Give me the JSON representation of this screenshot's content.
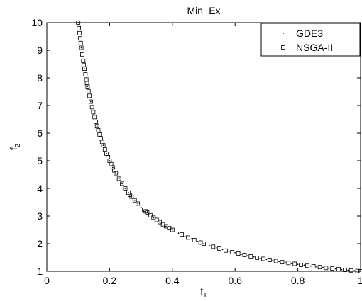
{
  "chart_data": {
    "type": "scatter",
    "title": "Min−Ex",
    "xlabel": "f",
    "xlabel_sub": "1",
    "ylabel": "f",
    "ylabel_sub": "2",
    "xlim": [
      0,
      1
    ],
    "ylim": [
      1,
      10
    ],
    "x_ticks": [
      "0",
      "0.2",
      "0.4",
      "0.6",
      "0.8",
      "1"
    ],
    "y_ticks": [
      "1",
      "2",
      "3",
      "4",
      "5",
      "6",
      "7",
      "8",
      "9",
      "10"
    ],
    "grid": false,
    "legend_position": "top-right",
    "series": [
      {
        "name": "GDE3",
        "marker": "dot",
        "points": [
          [
            0.1,
            10.0
          ],
          [
            0.11,
            9.09
          ],
          [
            0.12,
            8.33
          ],
          [
            0.13,
            7.69
          ],
          [
            0.14,
            7.14
          ],
          [
            0.15,
            6.67
          ],
          [
            0.16,
            6.25
          ],
          [
            0.17,
            5.88
          ],
          [
            0.18,
            5.56
          ],
          [
            0.19,
            5.26
          ],
          [
            0.2,
            5.0
          ],
          [
            0.21,
            4.76
          ],
          [
            0.22,
            4.55
          ],
          [
            0.23,
            4.35
          ],
          [
            0.24,
            4.17
          ],
          [
            0.25,
            4.0
          ],
          [
            0.26,
            3.85
          ],
          [
            0.27,
            3.7
          ],
          [
            0.28,
            3.57
          ],
          [
            0.29,
            3.45
          ],
          [
            0.3,
            3.33
          ],
          [
            0.32,
            3.13
          ],
          [
            0.34,
            2.94
          ],
          [
            0.36,
            2.78
          ],
          [
            0.38,
            2.63
          ],
          [
            0.4,
            2.5
          ],
          [
            0.42,
            2.38
          ],
          [
            0.44,
            2.27
          ],
          [
            0.46,
            2.17
          ],
          [
            0.48,
            2.08
          ],
          [
            0.5,
            2.0
          ],
          [
            0.52,
            1.92
          ],
          [
            0.54,
            1.85
          ],
          [
            0.56,
            1.79
          ],
          [
            0.58,
            1.72
          ],
          [
            0.6,
            1.67
          ],
          [
            0.62,
            1.61
          ],
          [
            0.64,
            1.56
          ],
          [
            0.66,
            1.52
          ],
          [
            0.68,
            1.47
          ],
          [
            0.7,
            1.43
          ],
          [
            0.72,
            1.39
          ],
          [
            0.74,
            1.35
          ],
          [
            0.76,
            1.32
          ],
          [
            0.78,
            1.28
          ],
          [
            0.8,
            1.25
          ],
          [
            0.82,
            1.22
          ],
          [
            0.84,
            1.19
          ],
          [
            0.86,
            1.16
          ],
          [
            0.88,
            1.14
          ],
          [
            0.9,
            1.11
          ],
          [
            0.92,
            1.09
          ],
          [
            0.94,
            1.06
          ],
          [
            0.96,
            1.04
          ],
          [
            0.98,
            1.02
          ],
          [
            1.0,
            1.0
          ]
        ]
      },
      {
        "name": "NSGA-II",
        "marker": "square",
        "points": [
          [
            0.1,
            10.0
          ],
          [
            0.102,
            9.8
          ],
          [
            0.104,
            9.62
          ],
          [
            0.106,
            9.43
          ],
          [
            0.108,
            9.26
          ],
          [
            0.11,
            9.09
          ],
          [
            0.113,
            8.85
          ],
          [
            0.116,
            8.62
          ],
          [
            0.118,
            8.47
          ],
          [
            0.12,
            8.33
          ],
          [
            0.123,
            8.13
          ],
          [
            0.126,
            7.94
          ],
          [
            0.128,
            7.81
          ],
          [
            0.13,
            7.69
          ],
          [
            0.133,
            7.52
          ],
          [
            0.136,
            7.35
          ],
          [
            0.14,
            7.14
          ],
          [
            0.144,
            6.94
          ],
          [
            0.148,
            6.76
          ],
          [
            0.152,
            6.58
          ],
          [
            0.156,
            6.41
          ],
          [
            0.16,
            6.25
          ],
          [
            0.164,
            6.1
          ],
          [
            0.168,
            5.95
          ],
          [
            0.172,
            5.81
          ],
          [
            0.176,
            5.68
          ],
          [
            0.18,
            5.56
          ],
          [
            0.185,
            5.41
          ],
          [
            0.19,
            5.26
          ],
          [
            0.195,
            5.13
          ],
          [
            0.2,
            5.0
          ],
          [
            0.205,
            4.88
          ],
          [
            0.21,
            4.76
          ],
          [
            0.215,
            4.65
          ],
          [
            0.22,
            4.55
          ],
          [
            0.23,
            4.35
          ],
          [
            0.24,
            4.17
          ],
          [
            0.25,
            4.0
          ],
          [
            0.26,
            3.85
          ],
          [
            0.265,
            3.77
          ],
          [
            0.27,
            3.7
          ],
          [
            0.28,
            3.57
          ],
          [
            0.29,
            3.45
          ],
          [
            0.31,
            3.23
          ],
          [
            0.315,
            3.17
          ],
          [
            0.32,
            3.13
          ],
          [
            0.33,
            3.03
          ],
          [
            0.34,
            2.94
          ],
          [
            0.35,
            2.86
          ],
          [
            0.36,
            2.78
          ],
          [
            0.37,
            2.7
          ],
          [
            0.38,
            2.63
          ],
          [
            0.39,
            2.56
          ],
          [
            0.4,
            2.5
          ],
          [
            0.43,
            2.33
          ],
          [
            0.45,
            2.22
          ],
          [
            0.47,
            2.13
          ],
          [
            0.49,
            2.04
          ],
          [
            0.5,
            2.0
          ],
          [
            0.53,
            1.89
          ],
          [
            0.55,
            1.82
          ],
          [
            0.57,
            1.75
          ],
          [
            0.59,
            1.69
          ],
          [
            0.61,
            1.64
          ],
          [
            0.63,
            1.59
          ],
          [
            0.65,
            1.54
          ],
          [
            0.67,
            1.49
          ],
          [
            0.69,
            1.45
          ],
          [
            0.71,
            1.41
          ],
          [
            0.73,
            1.37
          ],
          [
            0.75,
            1.33
          ],
          [
            0.77,
            1.3
          ],
          [
            0.79,
            1.27
          ],
          [
            0.81,
            1.23
          ],
          [
            0.83,
            1.2
          ],
          [
            0.85,
            1.18
          ],
          [
            0.87,
            1.15
          ],
          [
            0.89,
            1.12
          ],
          [
            0.91,
            1.1
          ],
          [
            0.93,
            1.08
          ],
          [
            0.95,
            1.05
          ],
          [
            0.97,
            1.03
          ],
          [
            0.99,
            1.01
          ],
          [
            1.0,
            1.0
          ]
        ]
      }
    ]
  }
}
